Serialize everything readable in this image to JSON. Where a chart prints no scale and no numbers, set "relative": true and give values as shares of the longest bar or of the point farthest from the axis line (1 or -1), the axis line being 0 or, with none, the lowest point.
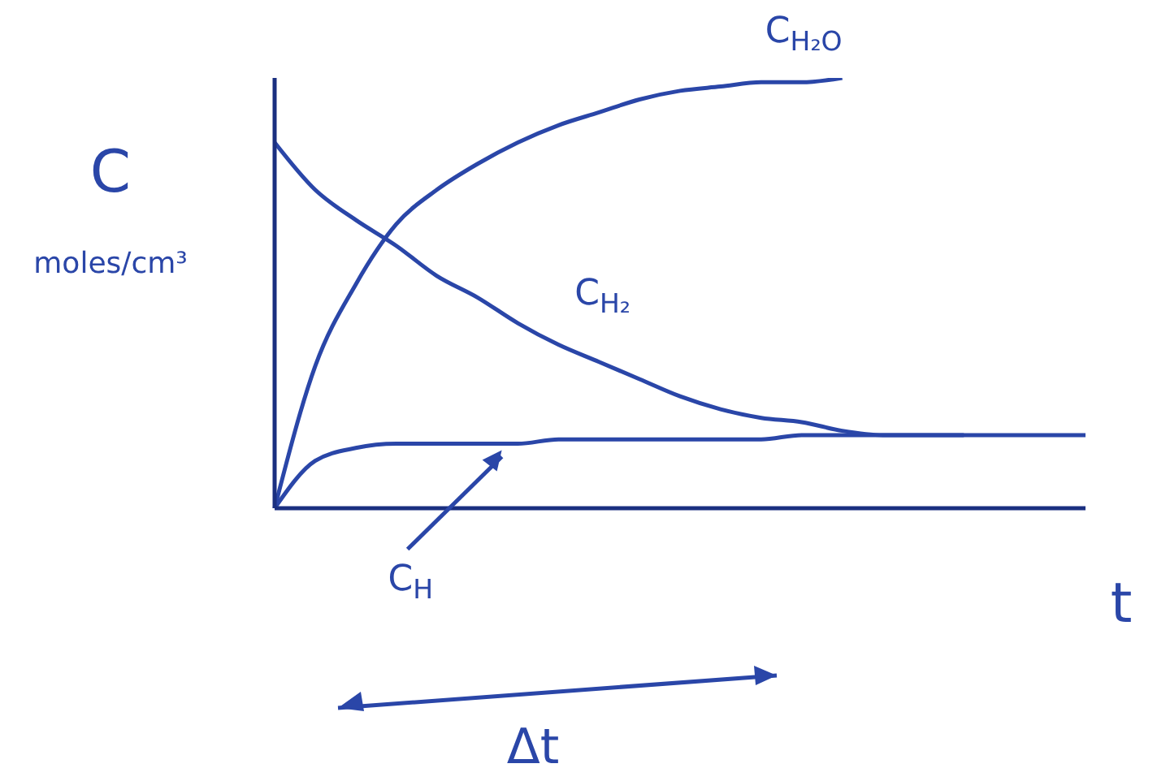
{
  "chart_data": {
    "type": "line",
    "relative": true,
    "xlabel": "t",
    "ylabel": "C moles/cm³",
    "categories": [
      null,
      null,
      null,
      null,
      null,
      null,
      null,
      null,
      null,
      null,
      null,
      null,
      null,
      null,
      null,
      null,
      null,
      null,
      null,
      null,
      null
    ],
    "series": [
      {
        "name": "C$_{H₂O}$",
        "color": "#2a46a8",
        "values": [
          0,
          0.33,
          0.52,
          0.66,
          0.74,
          0.8,
          0.85,
          0.89,
          0.92,
          0.95,
          0.97,
          0.98,
          0.99,
          0.99,
          1,
          null,
          null,
          null,
          null,
          null,
          null
        ]
      },
      {
        "name": "C$_{H₂}$",
        "color": "#2a46a8",
        "values": [
          0.85,
          0.74,
          0.67,
          0.61,
          0.54,
          0.49,
          0.43,
          0.38,
          0.34,
          0.3,
          0.26,
          0.23,
          0.21,
          0.2,
          0.18,
          0.17,
          0.17,
          0.17,
          null,
          null,
          null
        ]
      },
      {
        "name": "C$_{H}$",
        "color": "#2a46a8",
        "values": [
          0,
          0.11,
          0.14,
          0.15,
          0.15,
          0.15,
          0.15,
          0.16,
          0.16,
          0.16,
          0.16,
          0.16,
          0.16,
          0.17,
          0.17,
          0.17,
          0.17,
          0.17,
          0.17,
          0.17,
          0.17
        ]
      }
    ],
    "annotations": [
      "Δt"
    ],
    "legend": false,
    "grid": false,
    "marker": "none",
    "line_style": "solid"
  }
}
